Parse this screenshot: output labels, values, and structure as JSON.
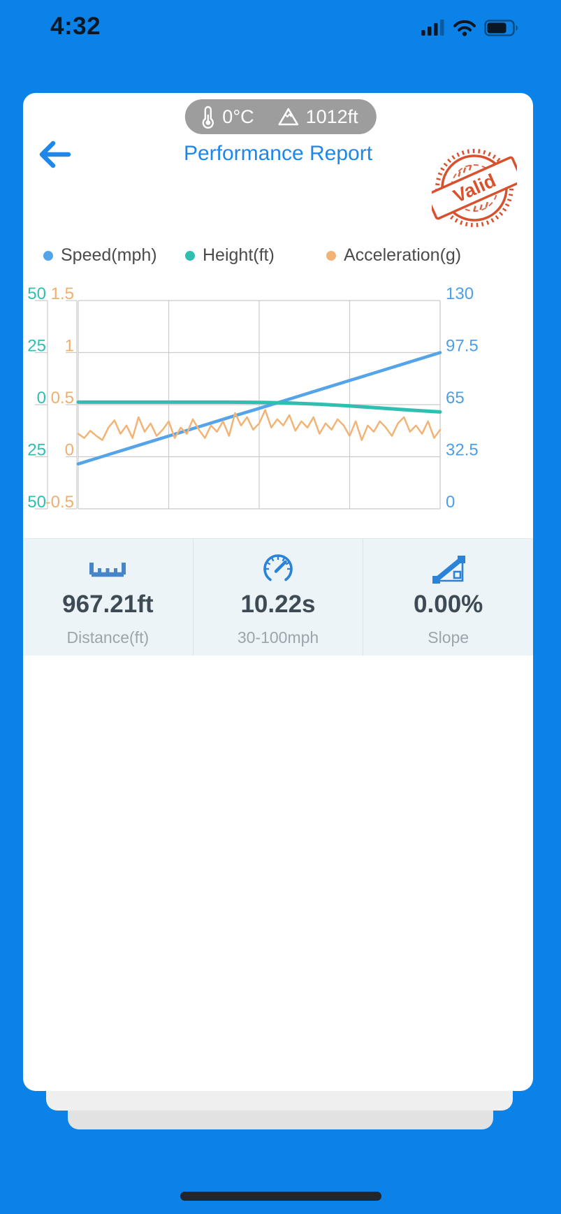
{
  "status_bar": {
    "time": "4:32"
  },
  "conditions": {
    "temperature": "0°C",
    "altitude": "1012ft"
  },
  "header": {
    "title": "Performance Report",
    "stamp_text": "Valid"
  },
  "legend": [
    {
      "label": "Speed(mph)",
      "color": "#55a4e9"
    },
    {
      "label": "Height(ft)",
      "color": "#2fbfb0"
    },
    {
      "label": "Acceleration(g)",
      "color": "#f2b476"
    }
  ],
  "chart_data": {
    "type": "line",
    "grid": true,
    "v_gridlines": 5,
    "h_gridlines": 5,
    "y_axes": [
      {
        "id": "height_ft",
        "side": "left-outer",
        "color": "#2fbfb0",
        "range": [
          -50,
          50
        ],
        "ticks": [
          50,
          25,
          0,
          -25,
          -50
        ]
      },
      {
        "id": "acceleration_g",
        "side": "left-inner",
        "color": "#eFaf6e",
        "range": [
          -0.5,
          1.5
        ],
        "ticks": [
          1.5,
          1,
          0.5,
          0,
          -0.5
        ]
      },
      {
        "id": "speed_mph",
        "side": "right",
        "color": "#4d9fe8",
        "range": [
          0,
          130
        ],
        "ticks": [
          130,
          97.5,
          65,
          32.5,
          0
        ]
      }
    ],
    "series": [
      {
        "name": "Speed(mph)",
        "axis": "speed_mph",
        "color": "#55a4e9",
        "width": 4.5,
        "values": [
          28,
          33.8,
          39.6,
          45.4,
          51.2,
          57,
          62.7,
          68.5,
          74.3,
          80.1,
          85.9,
          91.7,
          97.5
        ]
      },
      {
        "name": "Height(ft)",
        "axis": "height_ft",
        "color": "#2fbfb0",
        "width": 5,
        "values": [
          1.2,
          1.2,
          1.2,
          1.2,
          1.2,
          1.2,
          1.1,
          0.8,
          0.2,
          -0.6,
          -1.6,
          -2.6,
          -3.5
        ]
      },
      {
        "name": "Acceleration(g)",
        "axis": "acceleration_g",
        "color": "#f2b476",
        "width": 2.5,
        "values": [
          0.22,
          0.18,
          0.25,
          0.2,
          0.16,
          0.28,
          0.35,
          0.22,
          0.3,
          0.18,
          0.38,
          0.24,
          0.32,
          0.2,
          0.26,
          0.34,
          0.18,
          0.28,
          0.22,
          0.36,
          0.26,
          0.18,
          0.3,
          0.24,
          0.34,
          0.2,
          0.42,
          0.3,
          0.38,
          0.26,
          0.32,
          0.45,
          0.28,
          0.36,
          0.3,
          0.4,
          0.25,
          0.34,
          0.28,
          0.38,
          0.22,
          0.32,
          0.26,
          0.36,
          0.3,
          0.2,
          0.34,
          0.16,
          0.3,
          0.24,
          0.34,
          0.28,
          0.2,
          0.32,
          0.38,
          0.24,
          0.3,
          0.22,
          0.34,
          0.18,
          0.26
        ]
      }
    ]
  },
  "stats": [
    {
      "icon": "ruler-icon",
      "value": "967.21ft",
      "label": "Distance(ft)"
    },
    {
      "icon": "speedometer-icon",
      "value": "10.22s",
      "label": "30-100mph"
    },
    {
      "icon": "slope-icon",
      "value": "0.00%",
      "label": "Slope"
    }
  ],
  "colors": {
    "background": "#0a82e8",
    "card": "#ffffff",
    "accent_blue": "#1e87ea",
    "pill_gray": "#9d9d9d",
    "stamp_red": "#d8512e",
    "grid_gray": "#cbcbcb",
    "stats_bg": "#edf4f8",
    "stat_value": "#3e4a54",
    "stat_label": "#9aa5ac"
  }
}
